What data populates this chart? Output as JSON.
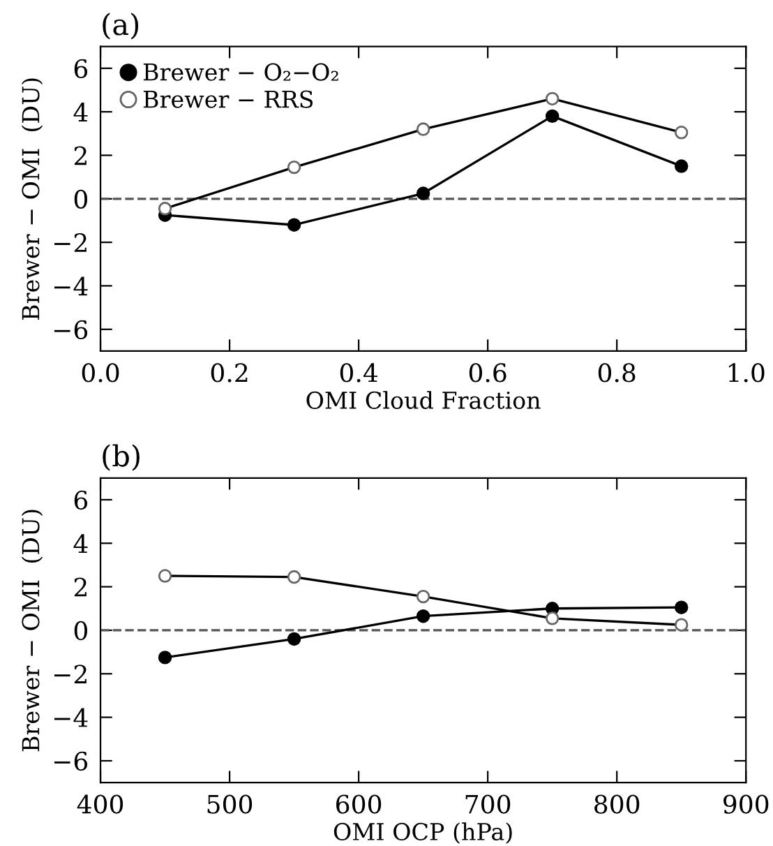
{
  "chart_data": [
    {
      "type": "line",
      "title": "(a)",
      "xlabel": "OMI Cloud Fraction",
      "ylabel": "Brewer − OMI  (DU)",
      "x": [
        0.1,
        0.3,
        0.5,
        0.7,
        0.9
      ],
      "series": [
        {
          "name": "Brewer − O₂−O₂",
          "color": "#000000",
          "marker": "circle",
          "values": [
            -0.75,
            -1.2,
            0.25,
            3.8,
            1.5
          ]
        },
        {
          "name": "Brewer − RRS",
          "color": "#000000",
          "marker": "open circle",
          "values": [
            -0.45,
            1.45,
            3.2,
            4.6,
            3.05
          ]
        }
      ],
      "xlim": [
        0.0,
        1.0
      ],
      "xticks": [
        {
          "value": 0.0,
          "label": "0.0"
        },
        0.2,
        0.4,
        0.6,
        0.8,
        {
          "value": 1.0,
          "label": "1.0"
        }
      ],
      "ylim": [
        -7,
        7
      ],
      "yticks": [
        -6,
        -4,
        -2,
        0,
        2,
        4,
        6
      ],
      "ref_lines": [
        {
          "axis": "y",
          "value": 0,
          "color": "#555555",
          "line_style": "dashed"
        }
      ],
      "legend": "top left",
      "grid": false
    },
    {
      "type": "line",
      "title": "(b)",
      "xlabel": "OMI OCP (hPa)",
      "ylabel": "Brewer − OMI  (DU)",
      "x": [
        450,
        550,
        650,
        750,
        850
      ],
      "series": [
        {
          "color": "#000000",
          "marker": "circle",
          "values": [
            -1.25,
            -0.4,
            0.65,
            1.0,
            1.05
          ]
        },
        {
          "color": "#000000",
          "marker": "open circle",
          "values": [
            2.5,
            2.45,
            1.55,
            0.55,
            0.25
          ]
        }
      ],
      "xlim": [
        400,
        900
      ],
      "xticks": [
        400,
        500,
        600,
        700,
        800,
        900
      ],
      "ylim": [
        -7,
        7
      ],
      "yticks": [
        -6,
        -4,
        -2,
        0,
        2,
        4,
        6
      ],
      "ref_lines": [
        {
          "axis": "y",
          "value": 0,
          "color": "#555555",
          "line_style": "dashed"
        }
      ],
      "legend": false,
      "grid": false
    }
  ]
}
